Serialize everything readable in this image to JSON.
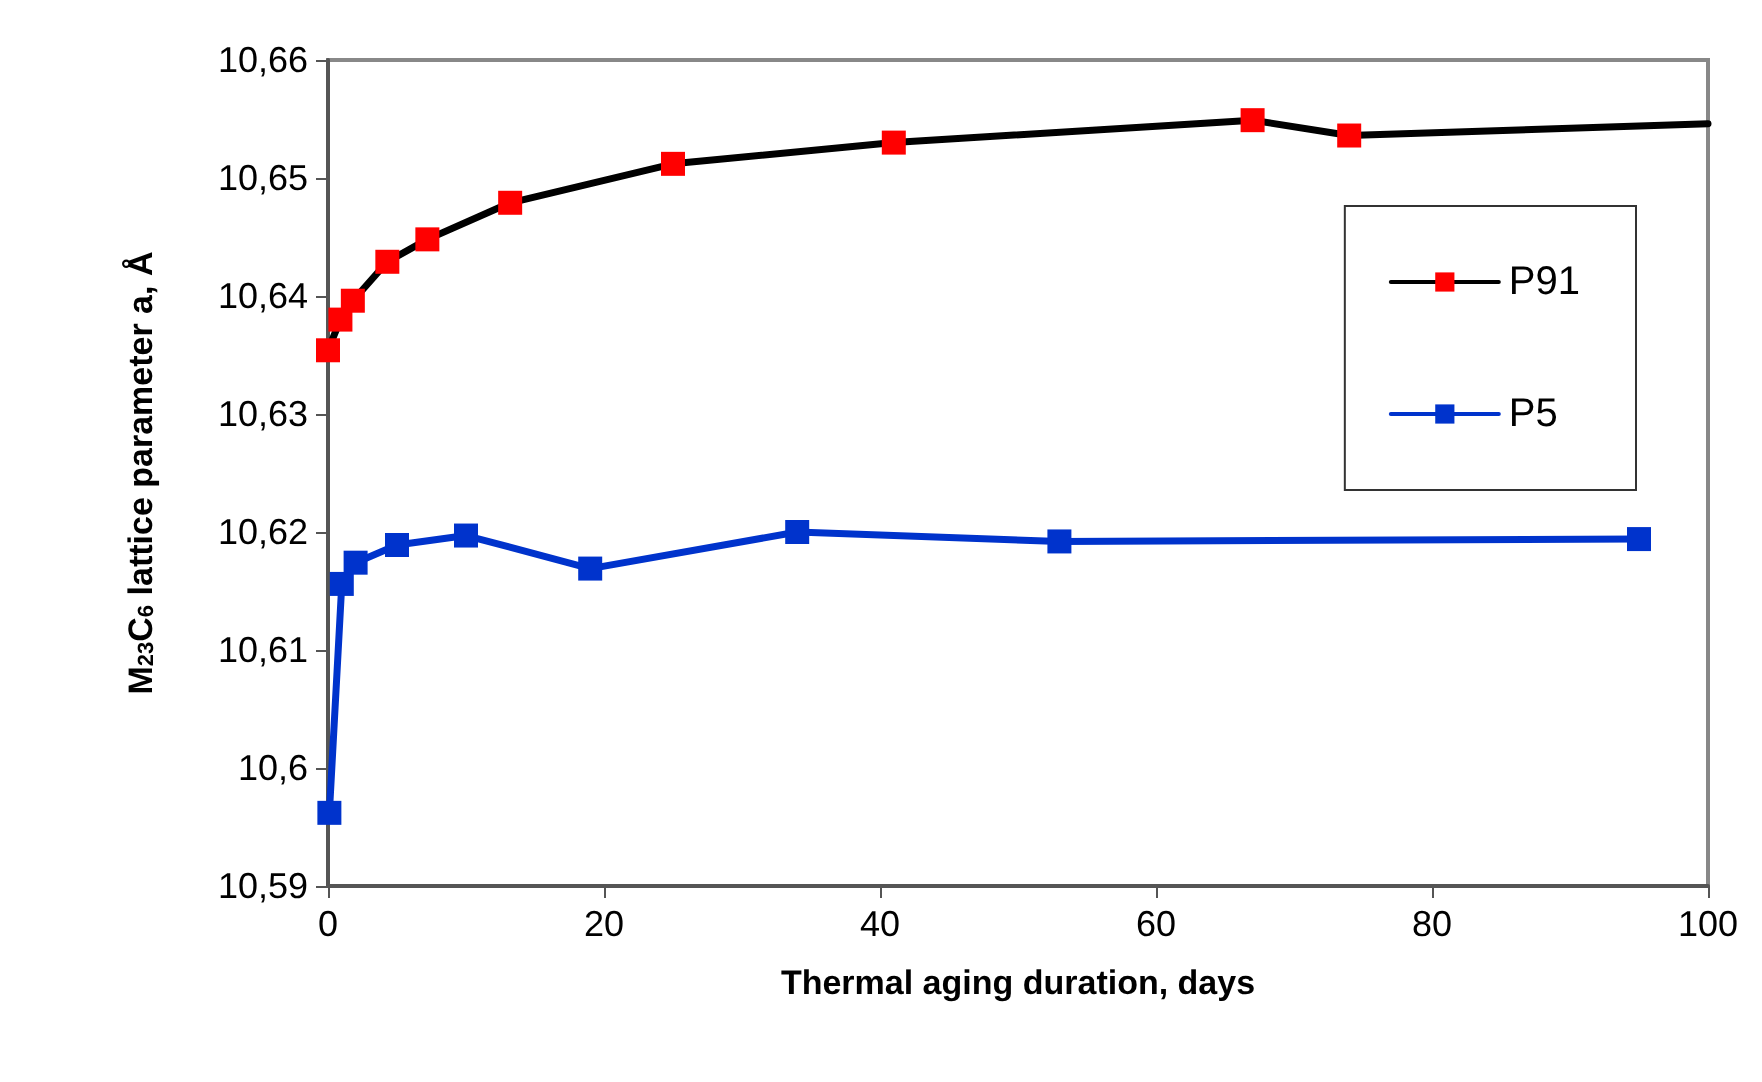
{
  "chart_data": {
    "type": "line",
    "xlabel": "Thermal aging duration, days",
    "ylabel": "M$_{23}$C$_{6}$ lattice parameter a, Å",
    "xlim": [
      0,
      100
    ],
    "xticks": [
      0,
      20,
      40,
      60,
      80,
      100
    ],
    "ylim": [
      10.59,
      10.66
    ],
    "yticks": [
      {
        "value": 10.59,
        "label": "10,59"
      },
      {
        "value": 10.6,
        "label": "10,6"
      },
      {
        "value": 10.61,
        "label": "10,61"
      },
      {
        "value": 10.62,
        "label": "10,62"
      },
      {
        "value": 10.63,
        "label": "10,63"
      },
      {
        "value": 10.64,
        "label": "10,64"
      },
      {
        "value": 10.65,
        "label": "10,65"
      },
      {
        "value": 10.66,
        "label": "10,66"
      }
    ],
    "grid": false,
    "legend": "right",
    "marker": "square",
    "line_style": "solid",
    "series": [
      {
        "name": "P91",
        "color": "#000000",
        "colors": [
          "#ff0000",
          "#ff0000",
          "#ff0000",
          "#ff0000",
          "#ff0000",
          "#ff0000",
          "#ff0000",
          "#ff0000",
          "#ff0000",
          "#ff0000",
          null
        ],
        "x": [
          0,
          0.9,
          1.8,
          4.3,
          7.2,
          13.2,
          25,
          41,
          67,
          74,
          100
        ],
        "values": [
          10.6354,
          10.638,
          10.6396,
          10.6429,
          10.6448,
          10.6479,
          10.6512,
          10.653,
          10.6549,
          10.6536,
          10.6546
        ]
      },
      {
        "name": "P5",
        "color": "#0033cc",
        "x": [
          0.1,
          1,
          2,
          5,
          10,
          19,
          34,
          53,
          95
        ],
        "values": [
          10.5962,
          10.6156,
          10.6174,
          10.6189,
          10.6197,
          10.6169,
          10.62,
          10.6192,
          10.6194
        ]
      }
    ]
  }
}
